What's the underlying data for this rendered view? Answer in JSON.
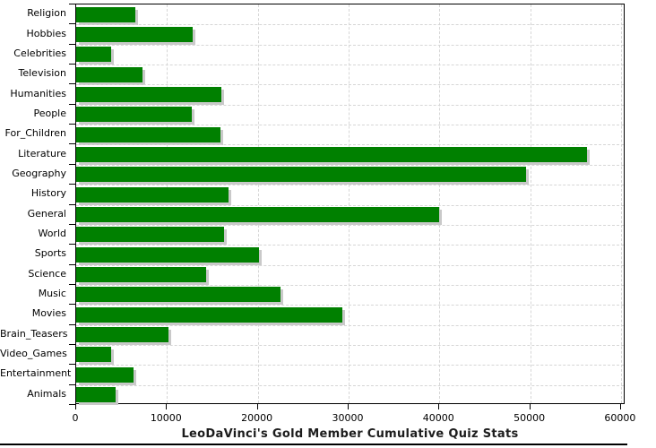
{
  "chart_data": {
    "type": "bar",
    "orientation": "horizontal",
    "title": "LeoDaVinci's Gold Member Cumulative Quiz Stats",
    "categories": [
      "Religion",
      "Hobbies",
      "Celebrities",
      "Television",
      "Humanities",
      "People",
      "For_Children",
      "Literature",
      "Geography",
      "History",
      "General",
      "World",
      "Sports",
      "Science",
      "Music",
      "Movies",
      "Brain_Teasers",
      "Video_Games",
      "Entertainment",
      "Animals"
    ],
    "values": [
      6500,
      12800,
      3850,
      7300,
      16000,
      12700,
      15900,
      56300,
      49500,
      16800,
      40000,
      16300,
      20100,
      14300,
      22500,
      29300,
      10200,
      3850,
      6300,
      4300
    ],
    "xlabel": "",
    "ylabel": "",
    "xlim": [
      0,
      60500
    ],
    "x_ticks": [
      0,
      10000,
      20000,
      30000,
      40000,
      50000,
      60000
    ],
    "grid": true,
    "legend": "none",
    "bar_color": "#008000",
    "shadow_color": "#c9c9c9",
    "gridline_color": "#d6d6d6"
  }
}
